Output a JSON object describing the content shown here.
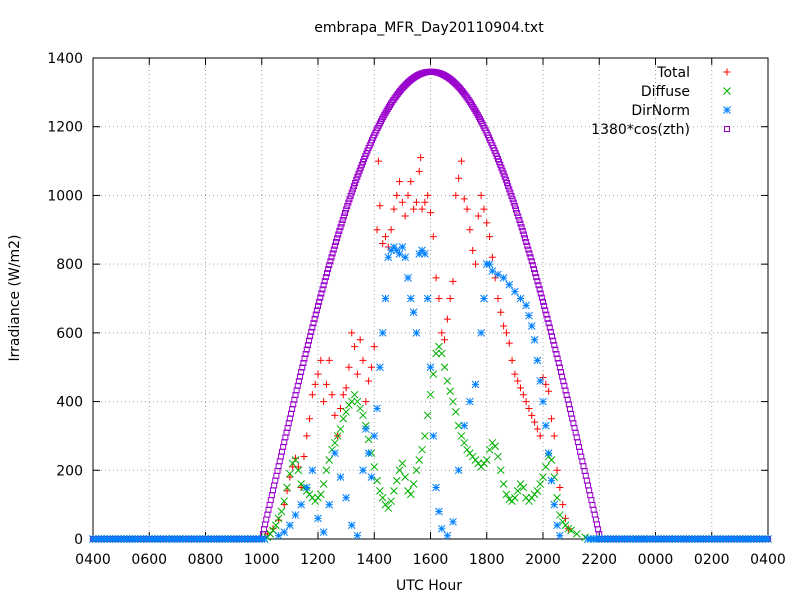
{
  "chart_data": {
    "type": "scatter",
    "title": "embrapa_MFR_Day20110904.txt",
    "xlabel": "UTC Hour",
    "ylabel": "Irradiance (W/m2)",
    "xlim": [
      4,
      28
    ],
    "ylim": [
      0,
      1400
    ],
    "x_tick_labels": [
      "0400",
      "0600",
      "0800",
      "1000",
      "1200",
      "1400",
      "1600",
      "1800",
      "2000",
      "2200",
      "0000",
      "0200",
      "0400"
    ],
    "y_tick_labels": [
      "0",
      "200",
      "400",
      "600",
      "800",
      "1000",
      "1200",
      "1400"
    ],
    "grid": true,
    "legend_position": "top-right",
    "series": [
      {
        "name": "Total",
        "marker": "plus",
        "color": "#ff0000",
        "points": [
          [
            10.2,
            15
          ],
          [
            10.4,
            30
          ],
          [
            10.6,
            55
          ],
          [
            10.8,
            100
          ],
          [
            10.9,
            140
          ],
          [
            11.0,
            180
          ],
          [
            11.1,
            210
          ],
          [
            11.2,
            235
          ],
          [
            11.3,
            210
          ],
          [
            11.4,
            150
          ],
          [
            11.5,
            240
          ],
          [
            11.6,
            300
          ],
          [
            11.7,
            350
          ],
          [
            11.8,
            420
          ],
          [
            11.9,
            450
          ],
          [
            12.0,
            480
          ],
          [
            12.1,
            520
          ],
          [
            12.2,
            400
          ],
          [
            12.3,
            450
          ],
          [
            12.4,
            520
          ],
          [
            12.5,
            420
          ],
          [
            12.6,
            360
          ],
          [
            12.7,
            300
          ],
          [
            12.8,
            380
          ],
          [
            12.9,
            420
          ],
          [
            13.0,
            440
          ],
          [
            13.1,
            500
          ],
          [
            13.2,
            600
          ],
          [
            13.3,
            560
          ],
          [
            13.4,
            480
          ],
          [
            13.5,
            580
          ],
          [
            13.6,
            520
          ],
          [
            13.7,
            400
          ],
          [
            13.8,
            460
          ],
          [
            13.9,
            500
          ],
          [
            14.0,
            560
          ],
          [
            14.1,
            900
          ],
          [
            14.15,
            1100
          ],
          [
            14.2,
            970
          ],
          [
            14.3,
            860
          ],
          [
            14.4,
            880
          ],
          [
            14.5,
            850
          ],
          [
            14.6,
            900
          ],
          [
            14.7,
            960
          ],
          [
            14.8,
            1000
          ],
          [
            14.9,
            1040
          ],
          [
            15.0,
            980
          ],
          [
            15.1,
            940
          ],
          [
            15.2,
            1000
          ],
          [
            15.3,
            1040
          ],
          [
            15.4,
            960
          ],
          [
            15.5,
            980
          ],
          [
            15.6,
            1070
          ],
          [
            15.65,
            1110
          ],
          [
            15.7,
            960
          ],
          [
            15.8,
            980
          ],
          [
            15.9,
            1000
          ],
          [
            16.0,
            950
          ],
          [
            16.1,
            880
          ],
          [
            16.2,
            760
          ],
          [
            16.3,
            700
          ],
          [
            16.4,
            600
          ],
          [
            16.5,
            580
          ],
          [
            16.6,
            640
          ],
          [
            16.7,
            700
          ],
          [
            16.8,
            750
          ],
          [
            16.9,
            1000
          ],
          [
            17.0,
            1050
          ],
          [
            17.1,
            1100
          ],
          [
            17.2,
            990
          ],
          [
            17.3,
            960
          ],
          [
            17.4,
            900
          ],
          [
            17.5,
            840
          ],
          [
            17.6,
            800
          ],
          [
            17.7,
            940
          ],
          [
            17.8,
            1000
          ],
          [
            17.9,
            960
          ],
          [
            18.0,
            920
          ],
          [
            18.1,
            880
          ],
          [
            18.2,
            820
          ],
          [
            18.3,
            760
          ],
          [
            18.4,
            700
          ],
          [
            18.5,
            660
          ],
          [
            18.6,
            620
          ],
          [
            18.7,
            600
          ],
          [
            18.8,
            570
          ],
          [
            18.9,
            520
          ],
          [
            19.0,
            480
          ],
          [
            19.1,
            460
          ],
          [
            19.2,
            440
          ],
          [
            19.3,
            420
          ],
          [
            19.4,
            400
          ],
          [
            19.5,
            380
          ],
          [
            19.6,
            360
          ],
          [
            19.7,
            340
          ],
          [
            19.8,
            320
          ],
          [
            19.9,
            300
          ],
          [
            20.0,
            470
          ],
          [
            20.1,
            450
          ],
          [
            20.2,
            430
          ],
          [
            20.3,
            350
          ],
          [
            20.4,
            300
          ],
          [
            20.5,
            200
          ],
          [
            20.6,
            150
          ],
          [
            20.7,
            100
          ],
          [
            20.8,
            60
          ],
          [
            20.9,
            30
          ]
        ]
      },
      {
        "name": "Diffuse",
        "marker": "cross",
        "color": "#00b000",
        "points": [
          [
            10.2,
            5
          ],
          [
            10.3,
            15
          ],
          [
            10.4,
            25
          ],
          [
            10.5,
            40
          ],
          [
            10.6,
            60
          ],
          [
            10.7,
            80
          ],
          [
            10.8,
            110
          ],
          [
            10.9,
            150
          ],
          [
            11.0,
            190
          ],
          [
            11.1,
            220
          ],
          [
            11.2,
            230
          ],
          [
            11.3,
            200
          ],
          [
            11.4,
            160
          ],
          [
            11.5,
            150
          ],
          [
            11.6,
            140
          ],
          [
            11.7,
            130
          ],
          [
            11.8,
            120
          ],
          [
            11.9,
            110
          ],
          [
            12.0,
            120
          ],
          [
            12.1,
            130
          ],
          [
            12.2,
            160
          ],
          [
            12.3,
            200
          ],
          [
            12.4,
            230
          ],
          [
            12.5,
            260
          ],
          [
            12.6,
            280
          ],
          [
            12.7,
            300
          ],
          [
            12.8,
            320
          ],
          [
            12.9,
            350
          ],
          [
            13.0,
            370
          ],
          [
            13.1,
            390
          ],
          [
            13.2,
            400
          ],
          [
            13.3,
            420
          ],
          [
            13.4,
            400
          ],
          [
            13.5,
            380
          ],
          [
            13.6,
            360
          ],
          [
            13.7,
            330
          ],
          [
            13.8,
            290
          ],
          [
            13.9,
            250
          ],
          [
            14.0,
            210
          ],
          [
            14.1,
            170
          ],
          [
            14.2,
            140
          ],
          [
            14.3,
            120
          ],
          [
            14.4,
            100
          ],
          [
            14.5,
            90
          ],
          [
            14.6,
            110
          ],
          [
            14.7,
            140
          ],
          [
            14.8,
            170
          ],
          [
            14.9,
            200
          ],
          [
            15.0,
            220
          ],
          [
            15.1,
            180
          ],
          [
            15.2,
            140
          ],
          [
            15.3,
            130
          ],
          [
            15.4,
            160
          ],
          [
            15.5,
            200
          ],
          [
            15.6,
            230
          ],
          [
            15.7,
            260
          ],
          [
            15.8,
            300
          ],
          [
            15.9,
            360
          ],
          [
            16.0,
            420
          ],
          [
            16.1,
            480
          ],
          [
            16.2,
            540
          ],
          [
            16.3,
            560
          ],
          [
            16.4,
            540
          ],
          [
            16.5,
            500
          ],
          [
            16.6,
            460
          ],
          [
            16.7,
            430
          ],
          [
            16.8,
            400
          ],
          [
            16.9,
            370
          ],
          [
            17.0,
            330
          ],
          [
            17.1,
            300
          ],
          [
            17.2,
            280
          ],
          [
            17.3,
            260
          ],
          [
            17.4,
            250
          ],
          [
            17.5,
            240
          ],
          [
            17.6,
            230
          ],
          [
            17.7,
            220
          ],
          [
            17.8,
            210
          ],
          [
            17.9,
            220
          ],
          [
            18.0,
            230
          ],
          [
            18.1,
            260
          ],
          [
            18.2,
            280
          ],
          [
            18.3,
            270
          ],
          [
            18.4,
            240
          ],
          [
            18.5,
            200
          ],
          [
            18.6,
            160
          ],
          [
            18.7,
            130
          ],
          [
            18.8,
            115
          ],
          [
            18.9,
            110
          ],
          [
            19.0,
            120
          ],
          [
            19.1,
            140
          ],
          [
            19.2,
            160
          ],
          [
            19.3,
            150
          ],
          [
            19.4,
            120
          ],
          [
            19.5,
            110
          ],
          [
            19.6,
            120
          ],
          [
            19.7,
            130
          ],
          [
            19.8,
            140
          ],
          [
            19.9,
            160
          ],
          [
            20.0,
            180
          ],
          [
            20.1,
            210
          ],
          [
            20.2,
            240
          ],
          [
            20.3,
            230
          ],
          [
            20.4,
            180
          ],
          [
            20.5,
            120
          ],
          [
            20.6,
            70
          ],
          [
            20.7,
            50
          ],
          [
            20.8,
            40
          ],
          [
            20.9,
            30
          ],
          [
            21.0,
            25
          ],
          [
            21.2,
            15
          ],
          [
            21.5,
            5
          ]
        ]
      },
      {
        "name": "DirNorm",
        "marker": "star",
        "color": "#0080ff",
        "points": [
          [
            10.6,
            10
          ],
          [
            10.8,
            20
          ],
          [
            11.0,
            40
          ],
          [
            11.2,
            70
          ],
          [
            11.4,
            100
          ],
          [
            11.6,
            150
          ],
          [
            11.8,
            200
          ],
          [
            12.0,
            60
          ],
          [
            12.2,
            20
          ],
          [
            12.4,
            100
          ],
          [
            12.6,
            250
          ],
          [
            12.8,
            180
          ],
          [
            13.0,
            120
          ],
          [
            13.2,
            40
          ],
          [
            13.4,
            10
          ],
          [
            13.6,
            200
          ],
          [
            13.7,
            320
          ],
          [
            13.8,
            250
          ],
          [
            13.9,
            180
          ],
          [
            14.0,
            300
          ],
          [
            14.1,
            380
          ],
          [
            14.2,
            500
          ],
          [
            14.3,
            600
          ],
          [
            14.4,
            700
          ],
          [
            14.5,
            820
          ],
          [
            14.6,
            840
          ],
          [
            14.7,
            850
          ],
          [
            14.8,
            840
          ],
          [
            14.9,
            830
          ],
          [
            15.0,
            850
          ],
          [
            15.1,
            820
          ],
          [
            15.2,
            760
          ],
          [
            15.3,
            700
          ],
          [
            15.4,
            660
          ],
          [
            15.5,
            600
          ],
          [
            15.6,
            830
          ],
          [
            15.7,
            840
          ],
          [
            15.8,
            830
          ],
          [
            15.9,
            700
          ],
          [
            16.0,
            500
          ],
          [
            16.1,
            300
          ],
          [
            16.2,
            150
          ],
          [
            16.3,
            80
          ],
          [
            16.4,
            30
          ],
          [
            16.6,
            10
          ],
          [
            16.8,
            50
          ],
          [
            17.0,
            200
          ],
          [
            17.2,
            330
          ],
          [
            17.4,
            400
          ],
          [
            17.6,
            450
          ],
          [
            17.8,
            600
          ],
          [
            17.9,
            700
          ],
          [
            18.0,
            800
          ],
          [
            18.1,
            800
          ],
          [
            18.2,
            780
          ],
          [
            18.4,
            770
          ],
          [
            18.6,
            760
          ],
          [
            18.8,
            740
          ],
          [
            19.0,
            720
          ],
          [
            19.2,
            700
          ],
          [
            19.4,
            680
          ],
          [
            19.5,
            650
          ],
          [
            19.6,
            620
          ],
          [
            19.7,
            580
          ],
          [
            19.8,
            520
          ],
          [
            19.9,
            460
          ],
          [
            20.0,
            400
          ],
          [
            20.1,
            330
          ],
          [
            20.2,
            250
          ],
          [
            20.3,
            170
          ],
          [
            20.4,
            100
          ],
          [
            20.5,
            40
          ],
          [
            20.6,
            10
          ]
        ]
      },
      {
        "name": "1380*cos(zth)",
        "marker": "square",
        "color": "#9900cc"
      }
    ]
  }
}
